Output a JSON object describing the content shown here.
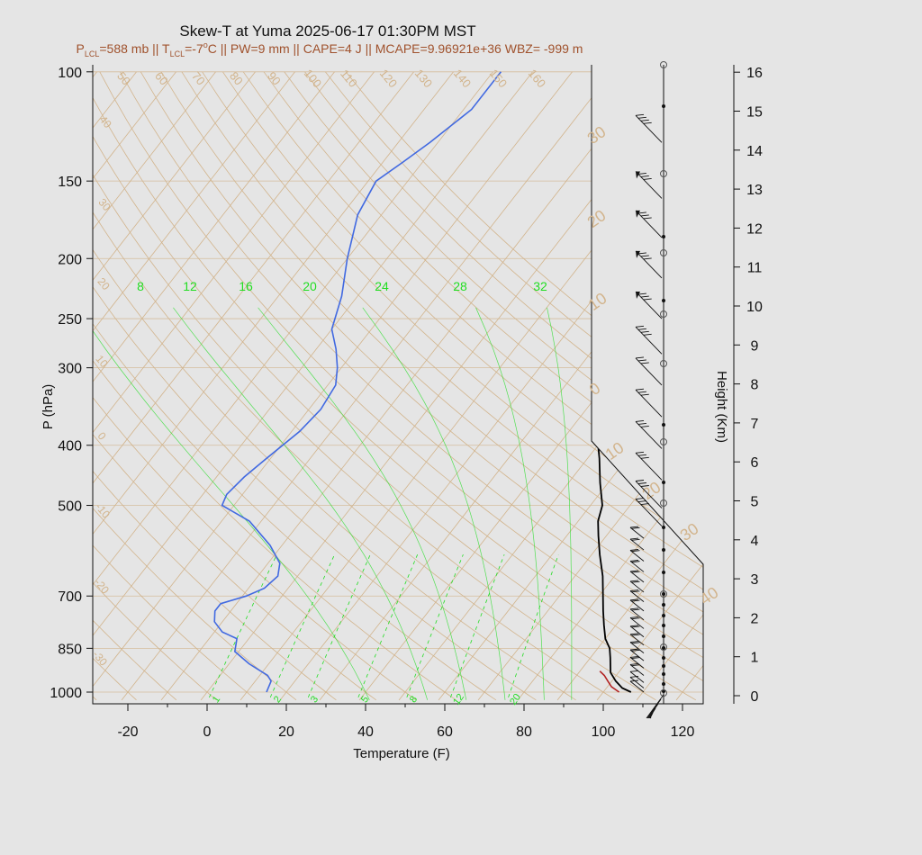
{
  "title": "Skew-T at Yuma 2025-06-17 01:30PM MST",
  "subtitle": {
    "p_lcl": "P",
    "p_lcl_sub": "LCL",
    "p_lcl_val": "=588 mb || T",
    "t_lcl_sub": "LCL",
    "t_lcl_val": "=-7",
    "deg": "o",
    "rest": "C || PW=9 mm || CAPE=4 J || MCAPE=9.96921e+36 WBZ= -999 m"
  },
  "colors": {
    "temperature": "#000000",
    "dewpoint": "#4169e1",
    "parcel": "#b22222",
    "isotherm": "#d2b48c",
    "mixing_ratio": "#22dd22",
    "background": "#e5e5e5",
    "wind": "#111111"
  },
  "chart_data": {
    "type": "skew-t",
    "xlabel": "Temperature (F)",
    "ylabel": "P (hPa)",
    "y2label": "Height (Km)",
    "x_ticks": [
      "-20",
      "0",
      "20",
      "40",
      "60",
      "80",
      "100",
      "120"
    ],
    "x_tick_values": [
      -20,
      0,
      20,
      40,
      60,
      80,
      100,
      120
    ],
    "p_ticks": [
      "100",
      "150",
      "200",
      "250",
      "300",
      "400",
      "500",
      "700",
      "850",
      "1000"
    ],
    "p_tick_values": [
      100,
      150,
      200,
      250,
      300,
      400,
      500,
      700,
      850,
      1000
    ],
    "height_ticks": [
      "0",
      "1",
      "2",
      "3",
      "4",
      "5",
      "6",
      "7",
      "8",
      "9",
      "10",
      "11",
      "12",
      "13",
      "14",
      "15",
      "16"
    ],
    "height_tick_values": [
      0,
      1,
      2,
      3,
      4,
      5,
      6,
      7,
      8,
      9,
      10,
      11,
      12,
      13,
      14,
      15,
      16
    ],
    "xlim": [
      -29,
      125
    ],
    "plim": [
      1030,
      100
    ],
    "isotherm_labels": [
      "50",
      "60",
      "70",
      "80",
      "90",
      "100",
      "110",
      "120",
      "130",
      "140",
      "150",
      "160"
    ],
    "left_isotherm_labels": [
      "40",
      "30",
      "20",
      "10",
      "0",
      "-10",
      "-20",
      "-30"
    ],
    "adiabat_labels": [
      "30",
      "20",
      "10",
      "0",
      "10",
      "20",
      "30",
      "40"
    ],
    "mixing_ratio_labels_top": [
      "8",
      "12",
      "16",
      "20",
      "24",
      "28",
      "32"
    ],
    "mixing_ratio_labels_bottom": [
      "1",
      "2",
      "3",
      "5",
      "8",
      "12",
      "20"
    ],
    "temperature": {
      "name": "Temperature",
      "p": [
        1000,
        985,
        960,
        930,
        880,
        850,
        820,
        780,
        740,
        700,
        650,
        600,
        560,
        530,
        500,
        460,
        420,
        380,
        340,
        300,
        270,
        240,
        210,
        180,
        160,
        140,
        125,
        110,
        100
      ],
      "t": [
        107,
        104,
        101,
        98,
        95,
        93,
        90,
        87,
        84,
        81,
        77,
        72,
        68,
        65,
        63,
        58,
        53,
        47,
        40,
        34,
        28,
        22,
        17,
        12,
        8,
        6,
        5,
        4,
        5
      ]
    },
    "dewpoint": {
      "name": "Dewpoint",
      "p": [
        1000,
        960,
        940,
        900,
        860,
        820,
        800,
        770,
        740,
        720,
        700,
        680,
        650,
        620,
        580,
        530,
        500,
        480,
        450,
        420,
        380,
        350,
        320,
        300,
        280,
        260,
        230,
        200,
        170,
        150,
        140,
        130,
        115,
        100
      ],
      "td": [
        15,
        14,
        12,
        5,
        -1,
        -3,
        -8,
        -12,
        -14,
        -14,
        -9,
        -6,
        -5,
        -7,
        -13,
        -23,
        -33,
        -34,
        -33,
        -31,
        -28,
        -27,
        -28,
        -31,
        -35,
        -40,
        -44,
        -50,
        -56,
        -58,
        -55,
        -52,
        -48,
        -48
      ]
    },
    "parcel": {
      "name": "Parcel",
      "p": [
        1000,
        980,
        960,
        940,
        925
      ],
      "t": [
        104,
        101,
        99,
        97,
        95
      ]
    },
    "wind_barbs_right": [
      {
        "p": 1000,
        "barbs": 1
      },
      {
        "p": 985,
        "barbs": 1
      },
      {
        "p": 965,
        "barbs": 1
      },
      {
        "p": 940,
        "barbs": 2
      },
      {
        "p": 915,
        "barbs": 2
      },
      {
        "p": 890,
        "barbs": 2
      },
      {
        "p": 865,
        "barbs": 2
      },
      {
        "p": 840,
        "barbs": 2
      },
      {
        "p": 815,
        "barbs": 2
      },
      {
        "p": 790,
        "barbs": 2
      },
      {
        "p": 765,
        "barbs": 2
      },
      {
        "p": 740,
        "barbs": 2
      },
      {
        "p": 715,
        "barbs": 2
      },
      {
        "p": 690,
        "barbs": 2
      },
      {
        "p": 665,
        "barbs": 2
      },
      {
        "p": 640,
        "barbs": 2
      },
      {
        "p": 615,
        "barbs": 2
      },
      {
        "p": 590,
        "barbs": 2
      },
      {
        "p": 565,
        "barbs": 2
      },
      {
        "p": 540,
        "barbs": 3
      },
      {
        "p": 505,
        "barbs": 3
      },
      {
        "p": 455,
        "barbs": 3
      },
      {
        "p": 405,
        "barbs": 3
      },
      {
        "p": 360,
        "barbs": 3
      },
      {
        "p": 320,
        "barbs": 3
      },
      {
        "p": 285,
        "barbs": 4
      },
      {
        "p": 250,
        "barbs": 4,
        "pennant": true
      },
      {
        "p": 215,
        "barbs": 4,
        "pennant": true
      },
      {
        "p": 185,
        "barbs": 4,
        "pennant": true
      },
      {
        "p": 160,
        "barbs": 4,
        "pennant": true
      },
      {
        "p": 130,
        "barbs": 4
      }
    ],
    "grid": true
  }
}
